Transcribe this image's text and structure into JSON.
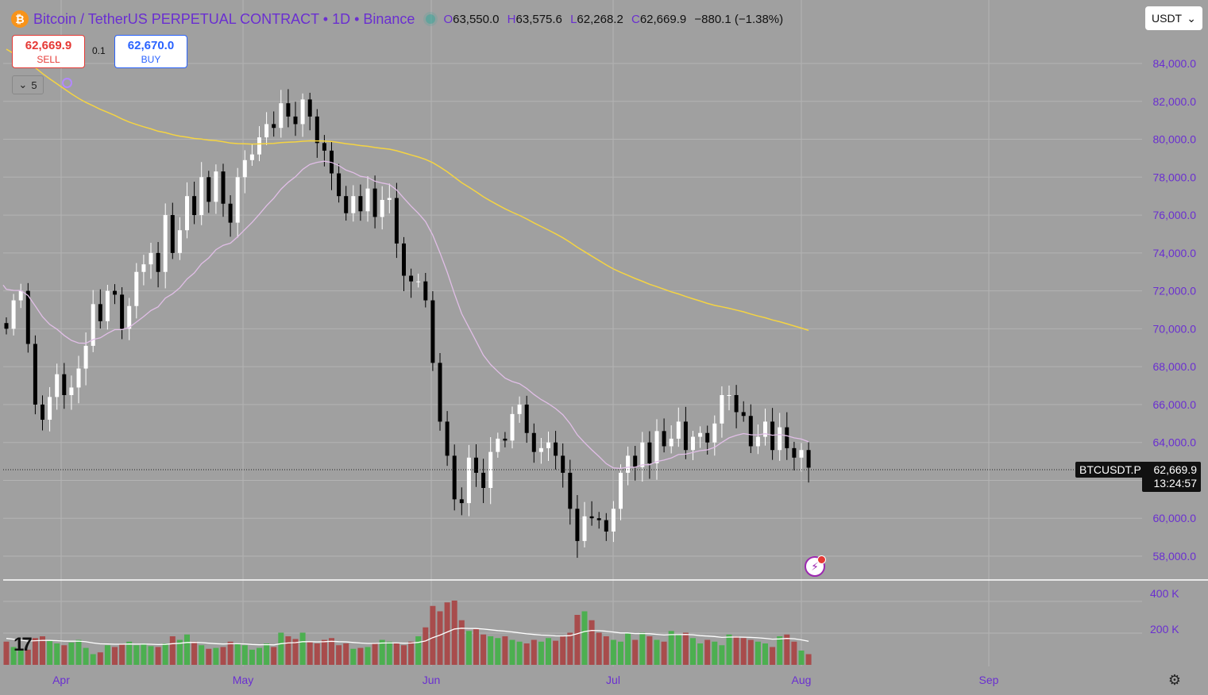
{
  "header": {
    "coin_glyph": "₿",
    "title": "Bitcoin / TetherUS PERPETUAL CONTRACT • 1D • Binance",
    "ohlc": {
      "o_label": "O",
      "o": "63,550.0",
      "h_label": "H",
      "h": "63,575.6",
      "l_label": "L",
      "l": "62,268.2",
      "c_label": "C",
      "c": "62,669.9",
      "change": "−880.1 (−1.38%)"
    }
  },
  "trade": {
    "sell_price": "62,669.9",
    "sell_label": "SELL",
    "spread": "0.1",
    "buy_price": "62,670.0",
    "buy_label": "BUY"
  },
  "indicators_toggle": {
    "count": "5",
    "icon": "chevron-down-icon"
  },
  "currency_select": {
    "value": "USDT",
    "icon": "chevron-down-icon"
  },
  "symbol_label": "BTCUSDT.P",
  "last_price": "62,669.9",
  "countdown": "13:24:57",
  "colors": {
    "up": "#ffffff",
    "down": "#000000",
    "ma_fast": "#e1bee7",
    "ma_slow": "#f5d442",
    "vol_up": "#4caf50",
    "vol_down": "#a84c4c",
    "axis_text": "#6a2fd0",
    "grid": "#b3b3b3"
  },
  "chart_data": {
    "type": "candlestick",
    "timeframe": "1D",
    "x_labels": [
      "Apr",
      "May",
      "Jun",
      "Jul",
      "Aug",
      "Sep"
    ],
    "price_ticks": [
      58000,
      60000,
      62000,
      64000,
      66000,
      68000,
      70000,
      72000,
      74000,
      76000,
      78000,
      80000,
      82000,
      84000
    ],
    "price_tick_labels": [
      "58,000.0",
      "60,000.0",
      "",
      "64,000.0",
      "66,000.0",
      "68,000.0",
      "70,000.0",
      "72,000.0",
      "74,000.0",
      "76,000.0",
      "78,000.0",
      "80,000.0",
      "82,000.0",
      "84,000.0"
    ],
    "volume_ticks": [
      200000,
      400000
    ],
    "volume_tick_labels": [
      "200 K",
      "400 K"
    ],
    "ylim": [
      57000,
      85500
    ],
    "volume_ylim": [
      0,
      480000
    ],
    "candles_close": [
      70000,
      71500,
      72000,
      69200,
      66000,
      65200,
      66400,
      67600,
      66500,
      66900,
      67900,
      69100,
      71300,
      70400,
      72000,
      71800,
      70000,
      71200,
      73000,
      73400,
      74000,
      73000,
      76000,
      74000,
      75200,
      77000,
      76000,
      78000,
      76700,
      78300,
      76600,
      75600,
      78000,
      78900,
      79200,
      80100,
      80800,
      80600,
      81900,
      81200,
      80800,
      82100,
      81200,
      79800,
      79400,
      78200,
      77000,
      76100,
      77000,
      76200,
      77400,
      75900,
      76800,
      76900,
      74500,
      72800,
      72500,
      72500,
      71500,
      68200,
      65100,
      63300,
      61000,
      60800,
      63200,
      62400,
      61600,
      63500,
      64200,
      64100,
      65500,
      66000,
      64500,
      63500,
      63700,
      64000,
      63300,
      62400,
      60500,
      58800,
      60100,
      60000,
      59900,
      59300,
      60500,
      62400,
      63300,
      62700,
      64000,
      62900,
      64600,
      63800,
      64200,
      65100,
      63600,
      64300,
      64500,
      64000,
      65000,
      66500,
      66500,
      65600,
      65400,
      63800,
      64300,
      65100,
      63600,
      64800,
      63700,
      63200,
      63600,
      62669.9
    ],
    "ma_fast_start": 72300,
    "ma_slow_start": 85000,
    "volumes": [
      130000,
      100000,
      90000,
      85000,
      150000,
      160000,
      135000,
      120000,
      110000,
      125000,
      140000,
      95000,
      60000,
      70000,
      110000,
      100000,
      115000,
      130000,
      110000,
      120000,
      105000,
      100000,
      120000,
      160000,
      140000,
      170000,
      130000,
      110000,
      90000,
      95000,
      100000,
      130000,
      120000,
      110000,
      85000,
      95000,
      120000,
      100000,
      180000,
      160000,
      145000,
      180000,
      130000,
      120000,
      140000,
      150000,
      110000,
      120000,
      90000,
      95000,
      100000,
      120000,
      140000,
      130000,
      120000,
      110000,
      130000,
      160000,
      210000,
      330000,
      300000,
      350000,
      360000,
      250000,
      190000,
      200000,
      170000,
      160000,
      150000,
      160000,
      140000,
      130000,
      120000,
      140000,
      130000,
      150000,
      135000,
      160000,
      180000,
      280000,
      300000,
      250000,
      180000,
      160000,
      140000,
      130000,
      180000,
      140000,
      180000,
      160000,
      140000,
      130000,
      190000,
      170000,
      180000,
      150000,
      120000,
      140000,
      130000,
      110000,
      170000,
      160000,
      150000,
      140000,
      130000,
      120000,
      100000,
      160000,
      170000,
      130000,
      80000,
      60000
    ]
  }
}
